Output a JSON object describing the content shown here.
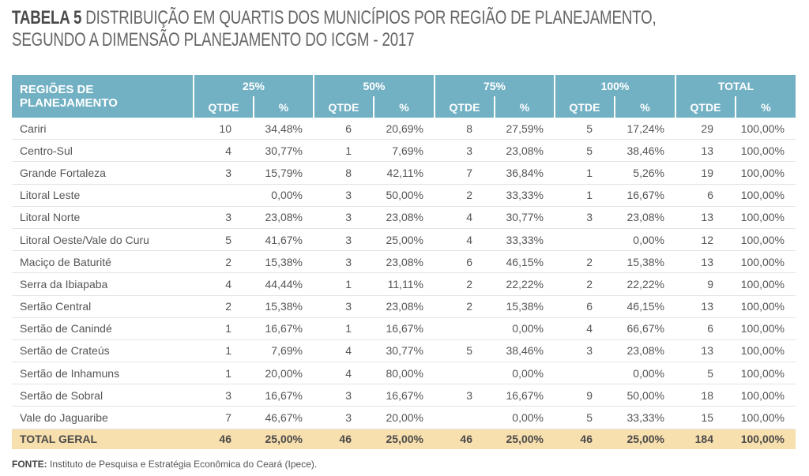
{
  "title": {
    "label": "TABELA 5",
    "line1": "DISTRIBUIÇÃO EM QUARTIS DOS MUNICÍPIOS POR REGIÃO DE PLANEJAMENTO,",
    "line2": "SEGUNDO A DIMENSÃO PLANEJAMENTO DO ICGM - 2017"
  },
  "header": {
    "region": "REGIÕES DE PLANEJAMENTO",
    "groups": [
      "25%",
      "50%",
      "75%",
      "100%",
      "TOTAL"
    ],
    "qtde": "QTDE",
    "pct": "%"
  },
  "rows": [
    [
      "Cariri",
      "10",
      "34,48%",
      "6",
      "20,69%",
      "8",
      "27,59%",
      "5",
      "17,24%",
      "29",
      "100,00%"
    ],
    [
      "Centro-Sul",
      "4",
      "30,77%",
      "1",
      "7,69%",
      "3",
      "23,08%",
      "5",
      "38,46%",
      "13",
      "100,00%"
    ],
    [
      "Grande Fortaleza",
      "3",
      "15,79%",
      "8",
      "42,11%",
      "7",
      "36,84%",
      "1",
      "5,26%",
      "19",
      "100,00%"
    ],
    [
      "Litoral Leste",
      "",
      "0,00%",
      "3",
      "50,00%",
      "2",
      "33,33%",
      "1",
      "16,67%",
      "6",
      "100,00%"
    ],
    [
      "Litoral Norte",
      "3",
      "23,08%",
      "3",
      "23,08%",
      "4",
      "30,77%",
      "3",
      "23,08%",
      "13",
      "100,00%"
    ],
    [
      "Litoral Oeste/Vale do Curu",
      "5",
      "41,67%",
      "3",
      "25,00%",
      "4",
      "33,33%",
      "",
      "0,00%",
      "12",
      "100,00%"
    ],
    [
      "Maciço de Baturité",
      "2",
      "15,38%",
      "3",
      "23,08%",
      "6",
      "46,15%",
      "2",
      "15,38%",
      "13",
      "100,00%"
    ],
    [
      "Serra da Ibiapaba",
      "4",
      "44,44%",
      "1",
      "11,11%",
      "2",
      "22,22%",
      "2",
      "22,22%",
      "9",
      "100,00%"
    ],
    [
      "Sertão Central",
      "2",
      "15,38%",
      "3",
      "23,08%",
      "2",
      "15,38%",
      "6",
      "46,15%",
      "13",
      "100,00%"
    ],
    [
      "Sertão de Canindé",
      "1",
      "16,67%",
      "1",
      "16,67%",
      "",
      "0,00%",
      "4",
      "66,67%",
      "6",
      "100,00%"
    ],
    [
      "Sertão de Crateús",
      "1",
      "7,69%",
      "4",
      "30,77%",
      "5",
      "38,46%",
      "3",
      "23,08%",
      "13",
      "100,00%"
    ],
    [
      "Sertão de Inhamuns",
      "1",
      "20,00%",
      "4",
      "80,00%",
      "",
      "0,00%",
      "",
      "0,00%",
      "5",
      "100,00%"
    ],
    [
      "Sertão de Sobral",
      "3",
      "16,67%",
      "3",
      "16,67%",
      "3",
      "16,67%",
      "9",
      "50,00%",
      "18",
      "100,00%"
    ],
    [
      "Vale do Jaguaribe",
      "7",
      "46,67%",
      "3",
      "20,00%",
      "",
      "0,00%",
      "5",
      "33,33%",
      "15",
      "100,00%"
    ]
  ],
  "total": [
    "TOTAL GERAL",
    "46",
    "25,00%",
    "46",
    "25,00%",
    "46",
    "25,00%",
    "46",
    "25,00%",
    "184",
    "100,00%"
  ],
  "footer": {
    "label": "FONTE:",
    "text": " Instituto de Pesquisa e Estratégia Econômica do Ceará (Ipece)."
  },
  "colors": {
    "header": "#72b1c4",
    "total": "#f8dfae"
  }
}
